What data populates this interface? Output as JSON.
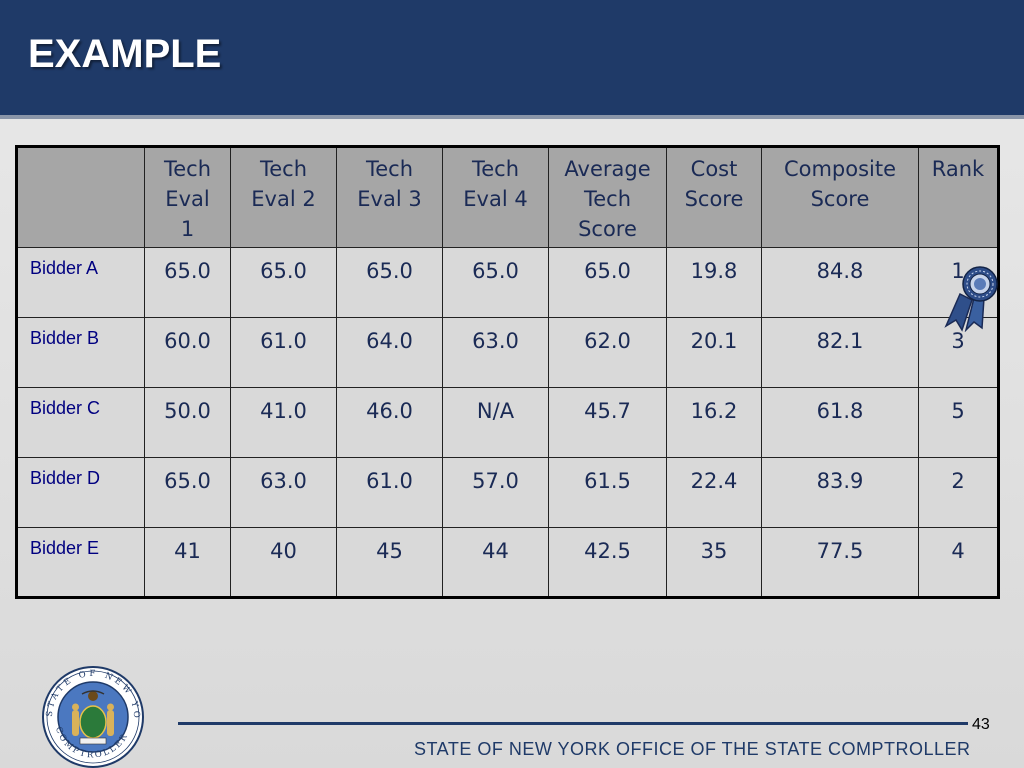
{
  "slide": {
    "title": "EXAMPLE",
    "page_number": "43",
    "footer": "STATE OF NEW YORK OFFICE OF THE STATE COMPTROLLER",
    "colors": {
      "header": "#1f3a68",
      "table_header": "#a6a6a6",
      "table_body": "#d9d9d9",
      "text": "#1a2a55"
    }
  },
  "table": {
    "headers": [
      "",
      "Tech\nEval\n1",
      "Tech\nEval 2",
      "Tech\nEval 3",
      "Tech\nEval 4",
      "Average\nTech\nScore",
      "Cost\nScore",
      "Composite\nScore",
      "Rank"
    ],
    "rows": [
      [
        "Bidder A",
        "65.0",
        "65.0",
        "65.0",
        "65.0",
        "65.0",
        "19.8",
        "84.8",
        "1"
      ],
      [
        "Bidder B",
        "60.0",
        "61.0",
        "64.0",
        "63.0",
        "62.0",
        "20.1",
        "82.1",
        "3"
      ],
      [
        "Bidder C",
        "50.0",
        "41.0",
        "46.0",
        "N/A",
        "45.7",
        "16.2",
        "61.8",
        "5"
      ],
      [
        "Bidder D",
        "65.0",
        "63.0",
        "61.0",
        "57.0",
        "61.5",
        "22.4",
        "83.9",
        "2"
      ],
      [
        "Bidder E",
        "41",
        "40",
        "45",
        "44",
        "42.5",
        "35",
        "77.5",
        "4"
      ]
    ]
  },
  "icons": {
    "winner": "award-ribbon-icon",
    "seal": "nys-comptroller-seal-icon"
  },
  "seal_text": {
    "top": "STATE OF NEW YORK",
    "bottom": "COMPTROLLER"
  }
}
